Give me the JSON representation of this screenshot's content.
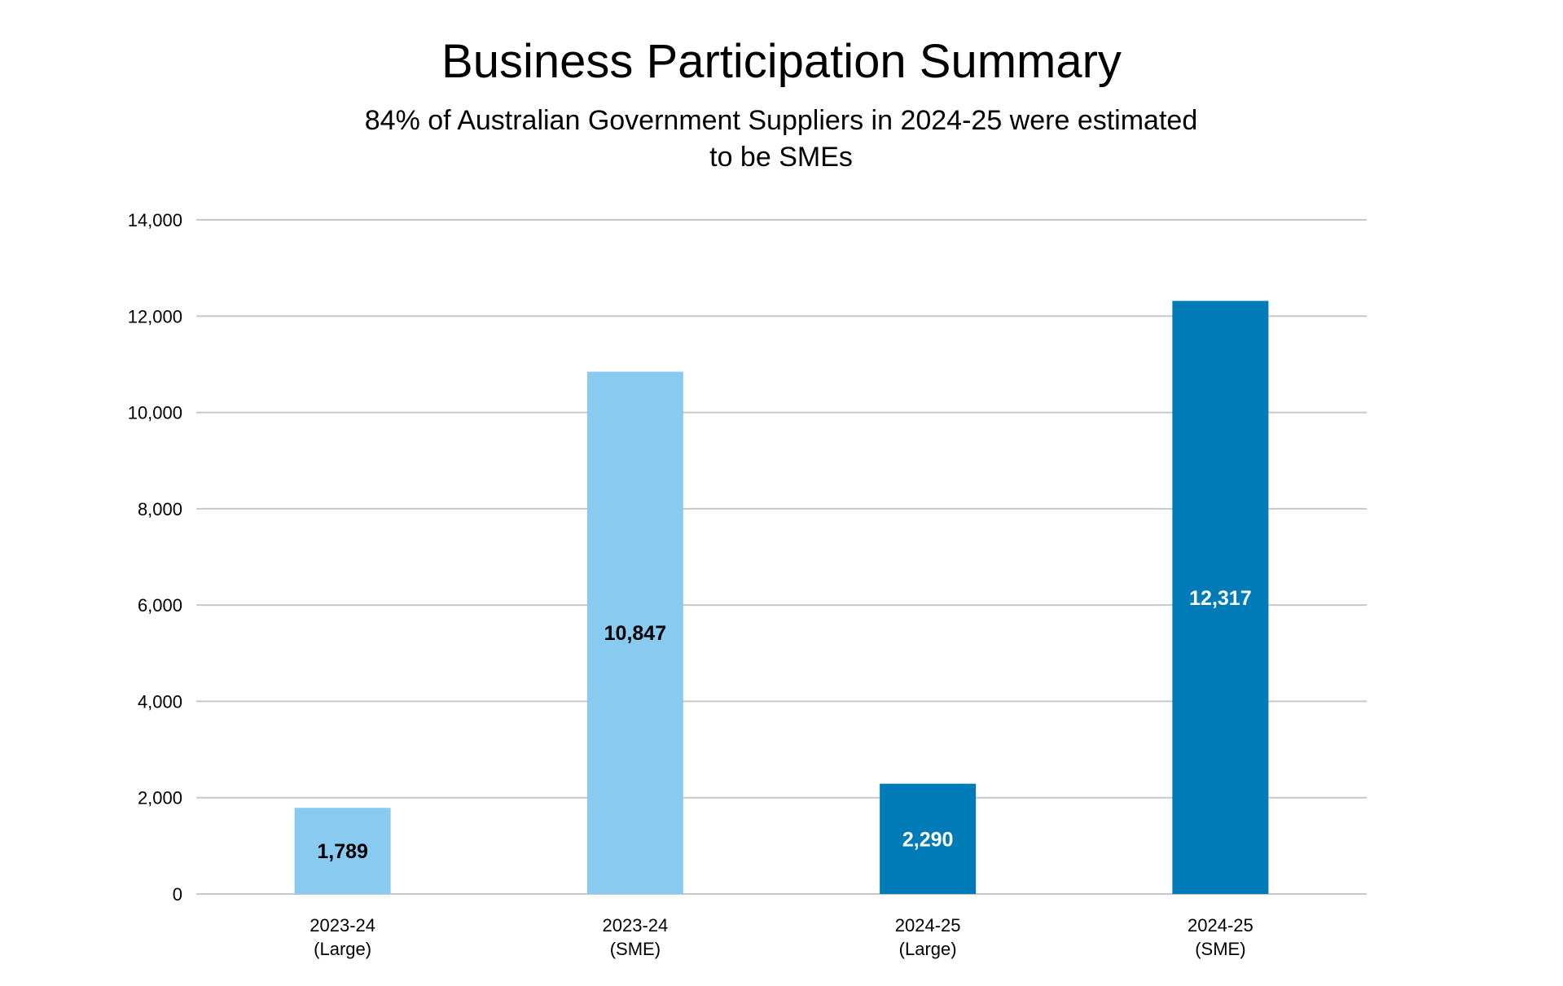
{
  "chart_data": {
    "type": "bar",
    "title": "Business Participation Summary",
    "subtitle": "84% of Australian Government Suppliers in 2024-25 were estimated to be SMEs",
    "categories": [
      [
        "2023-24",
        "(Large)"
      ],
      [
        "2023-24",
        "(SME)"
      ],
      [
        "2024-25",
        "(Large)"
      ],
      [
        "2024-25",
        "(SME)"
      ]
    ],
    "values": [
      1789,
      10847,
      2290,
      12317
    ],
    "data_labels": [
      "1,789",
      "10,847",
      "2,290",
      "12,317"
    ],
    "bar_colors": [
      "#88CAF0",
      "#88CAF0",
      "#007BB8",
      "#007BB8"
    ],
    "label_colors": [
      "#000000",
      "#000000",
      "#FFFFFF",
      "#FFFFFF"
    ],
    "ylim": [
      0,
      14000
    ],
    "yticks": [
      0,
      2000,
      4000,
      6000,
      8000,
      10000,
      12000,
      14000
    ],
    "ytick_labels": [
      "0",
      "2,000",
      "4,000",
      "6,000",
      "8,000",
      "10,000",
      "12,000",
      "14,000"
    ],
    "grid": true,
    "xlabel": "",
    "ylabel": ""
  }
}
